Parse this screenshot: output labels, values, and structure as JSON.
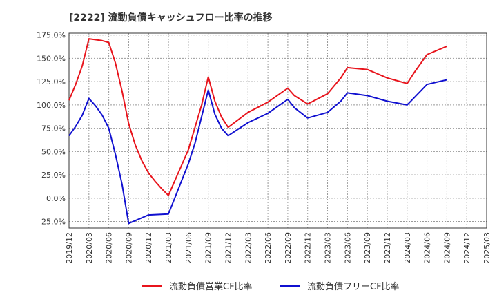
{
  "chart_data": {
    "type": "line",
    "title": "[2222]  流動負債キャッシュフロー比率の推移",
    "xlabel": "",
    "ylabel": "",
    "ylim": [
      -32,
      177
    ],
    "yticks": [
      -25,
      0,
      25,
      50,
      75,
      100,
      125,
      150,
      175
    ],
    "ytick_labels": [
      "-25.0%",
      "0.0%",
      "25.0%",
      "50.0%",
      "75.0%",
      "100.0%",
      "125.0%",
      "150.0%",
      "175.0%"
    ],
    "x_range": [
      "2019-12",
      "2025-03"
    ],
    "xtick_labels": [
      "2019/12",
      "2020/03",
      "2020/06",
      "2020/09",
      "2020/12",
      "2021/03",
      "2021/06",
      "2021/09",
      "2021/12",
      "2022/03",
      "2022/06",
      "2022/09",
      "2022/12",
      "2023/03",
      "2023/06",
      "2023/09",
      "2023/12",
      "2024/03",
      "2024/06",
      "2024/09",
      "2024/12",
      "2025/03"
    ],
    "grid": true,
    "legend_position": "bottom",
    "series": [
      {
        "name": "流動負債営業CF比率",
        "color": "#e8141c",
        "points": [
          [
            "2019-12",
            105
          ],
          [
            "2020-01",
            122
          ],
          [
            "2020-02",
            142
          ],
          [
            "2020-03",
            171
          ],
          [
            "2020-05",
            169
          ],
          [
            "2020-06",
            167
          ],
          [
            "2020-07",
            145
          ],
          [
            "2020-08",
            115
          ],
          [
            "2020-09",
            80
          ],
          [
            "2020-10",
            57
          ],
          [
            "2020-11",
            40
          ],
          [
            "2020-12",
            27
          ],
          [
            "2021-01",
            18
          ],
          [
            "2021-02",
            10
          ],
          [
            "2021-03",
            3
          ],
          [
            "2021-06",
            52
          ],
          [
            "2021-08",
            100
          ],
          [
            "2021-09",
            130
          ],
          [
            "2021-10",
            104
          ],
          [
            "2021-11",
            87
          ],
          [
            "2021-12",
            76
          ],
          [
            "2022-03",
            92
          ],
          [
            "2022-06",
            103
          ],
          [
            "2022-09",
            118
          ],
          [
            "2022-10",
            110
          ],
          [
            "2022-12",
            101
          ],
          [
            "2023-03",
            112
          ],
          [
            "2023-05",
            129
          ],
          [
            "2023-06",
            140
          ],
          [
            "2023-09",
            138
          ],
          [
            "2023-11",
            132
          ],
          [
            "2023-12",
            129
          ],
          [
            "2024-03",
            123
          ],
          [
            "2024-04",
            134
          ],
          [
            "2024-06",
            154
          ],
          [
            "2024-09",
            163
          ]
        ]
      },
      {
        "name": "流動負債フリーCF比率",
        "color": "#1010d0",
        "points": [
          [
            "2019-12",
            67
          ],
          [
            "2020-01",
            77
          ],
          [
            "2020-02",
            89
          ],
          [
            "2020-03",
            107
          ],
          [
            "2020-04",
            99
          ],
          [
            "2020-05",
            89
          ],
          [
            "2020-06",
            75
          ],
          [
            "2020-07",
            47
          ],
          [
            "2020-08",
            15
          ],
          [
            "2020-09",
            -27
          ],
          [
            "2020-11",
            -21
          ],
          [
            "2020-12",
            -18
          ],
          [
            "2021-03",
            -17
          ],
          [
            "2021-06",
            37
          ],
          [
            "2021-07",
            59
          ],
          [
            "2021-09",
            116
          ],
          [
            "2021-10",
            90
          ],
          [
            "2021-11",
            75
          ],
          [
            "2021-12",
            67
          ],
          [
            "2022-03",
            81
          ],
          [
            "2022-06",
            91
          ],
          [
            "2022-09",
            106
          ],
          [
            "2022-10",
            97
          ],
          [
            "2022-12",
            86
          ],
          [
            "2023-03",
            92
          ],
          [
            "2023-05",
            104
          ],
          [
            "2023-06",
            113
          ],
          [
            "2023-09",
            110
          ],
          [
            "2023-12",
            104
          ],
          [
            "2024-03",
            100
          ],
          [
            "2024-06",
            122
          ],
          [
            "2024-09",
            127
          ]
        ]
      }
    ]
  }
}
